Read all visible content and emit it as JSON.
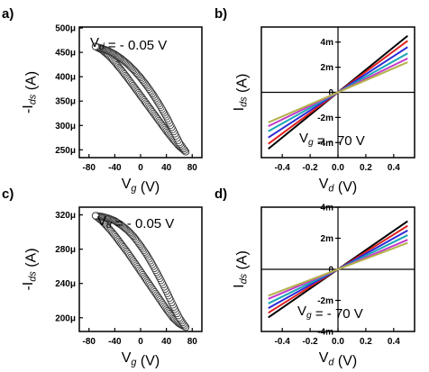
{
  "chart_data": [
    {
      "panel_label": "a)",
      "type": "scatter",
      "ylabel": "-I_ds (A)",
      "xlabel": "V_g (V)",
      "annotation": "V_d = - 0.05 V",
      "xlim": [
        -95,
        95
      ],
      "ylim": [
        0.000234,
        0.000502
      ],
      "x_ticks": [
        -80,
        -40,
        0,
        40,
        80
      ],
      "x_tick_labels": [
        "-80",
        "-40",
        "0",
        "40",
        "80"
      ],
      "y_ticks": [
        0.00025,
        0.0003,
        0.00035,
        0.0004,
        0.00045,
        0.0005
      ],
      "y_tick_labels": [
        "250μ",
        "300μ",
        "350μ",
        "400μ",
        "450μ",
        "500μ"
      ],
      "marker": "open-circle",
      "series": [
        {
          "x": [
            -70,
            -60,
            -50,
            -40,
            -30,
            -20,
            -10,
            0,
            10,
            20,
            30,
            40,
            50,
            60,
            70
          ],
          "y": [
            0.000462,
            0.000455,
            0.000444,
            0.00043,
            0.000414,
            0.000397,
            0.000379,
            0.000361,
            0.000343,
            0.000325,
            0.000307,
            0.000289,
            0.000272,
            0.000257,
            0.000246
          ]
        },
        {
          "x": [
            70,
            60,
            50,
            40,
            30,
            20,
            10,
            0,
            -10,
            -20,
            -30,
            -40,
            -50,
            -60,
            -70
          ],
          "y": [
            0.000246,
            0.000265,
            0.000292,
            0.000318,
            0.000341,
            0.000362,
            0.000381,
            0.000398,
            0.000413,
            0.000426,
            0.000437,
            0.000446,
            0.000453,
            0.000458,
            0.000462
          ]
        }
      ]
    },
    {
      "panel_label": "b)",
      "type": "line",
      "ylabel": "I_ds (A)",
      "xlabel": "V_d (V)",
      "annotation": "V_g = - 70 V",
      "xlim": [
        -0.55,
        0.55
      ],
      "ylim": [
        -0.0052,
        0.0052
      ],
      "x_ticks": [
        -0.4,
        -0.2,
        0.0,
        0.2,
        0.4
      ],
      "x_tick_labels": [
        "-0.4",
        "-0.2",
        "0.0",
        "0.2",
        "0.4"
      ],
      "y_ticks": [
        -0.004,
        -0.002,
        0,
        0.002,
        0.004
      ],
      "y_tick_labels": [
        "-4m",
        "-2m",
        "0",
        "2m",
        "4m"
      ],
      "series": [
        {
          "color": "#000000",
          "x": [
            -0.5,
            0.5
          ],
          "y": [
            -0.0045,
            0.0045
          ]
        },
        {
          "color": "#e0201e",
          "x": [
            -0.5,
            0.5
          ],
          "y": [
            -0.0041,
            0.0041
          ]
        },
        {
          "color": "#2b2bd6",
          "x": [
            -0.5,
            0.5
          ],
          "y": [
            -0.0036,
            0.0036
          ]
        },
        {
          "color": "#19a6b3",
          "x": [
            -0.5,
            0.5
          ],
          "y": [
            -0.0031,
            0.0031
          ]
        },
        {
          "color": "#c03ac8",
          "x": [
            -0.5,
            0.5
          ],
          "y": [
            -0.0027,
            0.0027
          ]
        },
        {
          "color": "#b4b24a",
          "x": [
            -0.5,
            0.5
          ],
          "y": [
            -0.0024,
            0.0024
          ]
        }
      ]
    },
    {
      "panel_label": "c)",
      "type": "scatter",
      "ylabel": "-I_ds (A)",
      "xlabel": "V_g (V)",
      "annotation": "V_d = - 0.05 V",
      "xlim": [
        -95,
        95
      ],
      "ylim": [
        0.000184,
        0.000329
      ],
      "x_ticks": [
        -80,
        -40,
        0,
        40,
        80
      ],
      "x_tick_labels": [
        "-80",
        "-40",
        "0",
        "40",
        "80"
      ],
      "y_ticks": [
        0.0002,
        0.00024,
        0.00028,
        0.00032
      ],
      "y_tick_labels": [
        "200μ",
        "240μ",
        "280μ",
        "320μ"
      ],
      "marker": "open-circle",
      "series": [
        {
          "x": [
            -70,
            -60,
            -50,
            -40,
            -30,
            -20,
            -10,
            0,
            10,
            20,
            30,
            40,
            50,
            60,
            70
          ],
          "y": [
            0.000319,
            0.000313,
            0.000305,
            0.000296,
            0.000286,
            0.000276,
            0.000265,
            0.000254,
            0.000243,
            0.000232,
            0.000221,
            0.00021,
            0.0002,
            0.000193,
            0.000189
          ]
        },
        {
          "x": [
            70,
            60,
            50,
            40,
            30,
            20,
            10,
            0,
            -10,
            -20,
            -30,
            -40,
            -50,
            -60,
            -70
          ],
          "y": [
            0.000189,
            0.0002,
            0.000215,
            0.000231,
            0.000246,
            0.00026,
            0.000273,
            0.000284,
            0.000294,
            0.000302,
            0.000308,
            0.000313,
            0.000316,
            0.000318,
            0.000319
          ]
        }
      ]
    },
    {
      "panel_label": "d)",
      "type": "line",
      "ylabel": "I_ds (A)",
      "xlabel": "V_d (V)",
      "annotation": "V_g = - 70 V",
      "xlim": [
        -0.55,
        0.55
      ],
      "ylim": [
        -0.004,
        0.004
      ],
      "x_ticks": [
        -0.4,
        -0.2,
        0.0,
        0.2,
        0.4
      ],
      "x_tick_labels": [
        "-0.4",
        "-0.2",
        "0.0",
        "0.2",
        "0.4"
      ],
      "y_ticks": [
        -0.004,
        -0.002,
        0,
        0.002,
        0.004
      ],
      "y_tick_labels": [
        "-4m",
        "-2m",
        "0",
        "2m",
        "4m"
      ],
      "series": [
        {
          "color": "#000000",
          "x": [
            -0.5,
            0.5
          ],
          "y": [
            -0.0031,
            0.0031
          ]
        },
        {
          "color": "#e0201e",
          "x": [
            -0.5,
            0.5
          ],
          "y": [
            -0.0028,
            0.0028
          ]
        },
        {
          "color": "#2b2bd6",
          "x": [
            -0.5,
            0.5
          ],
          "y": [
            -0.0025,
            0.0025
          ]
        },
        {
          "color": "#19a6b3",
          "x": [
            -0.5,
            0.5
          ],
          "y": [
            -0.0022,
            0.0022
          ]
        },
        {
          "color": "#c03ac8",
          "x": [
            -0.5,
            0.5
          ],
          "y": [
            -0.0019,
            0.0019
          ]
        },
        {
          "color": "#b4b24a",
          "x": [
            -0.5,
            0.5
          ],
          "y": [
            -0.0017,
            0.0017
          ]
        }
      ]
    }
  ]
}
